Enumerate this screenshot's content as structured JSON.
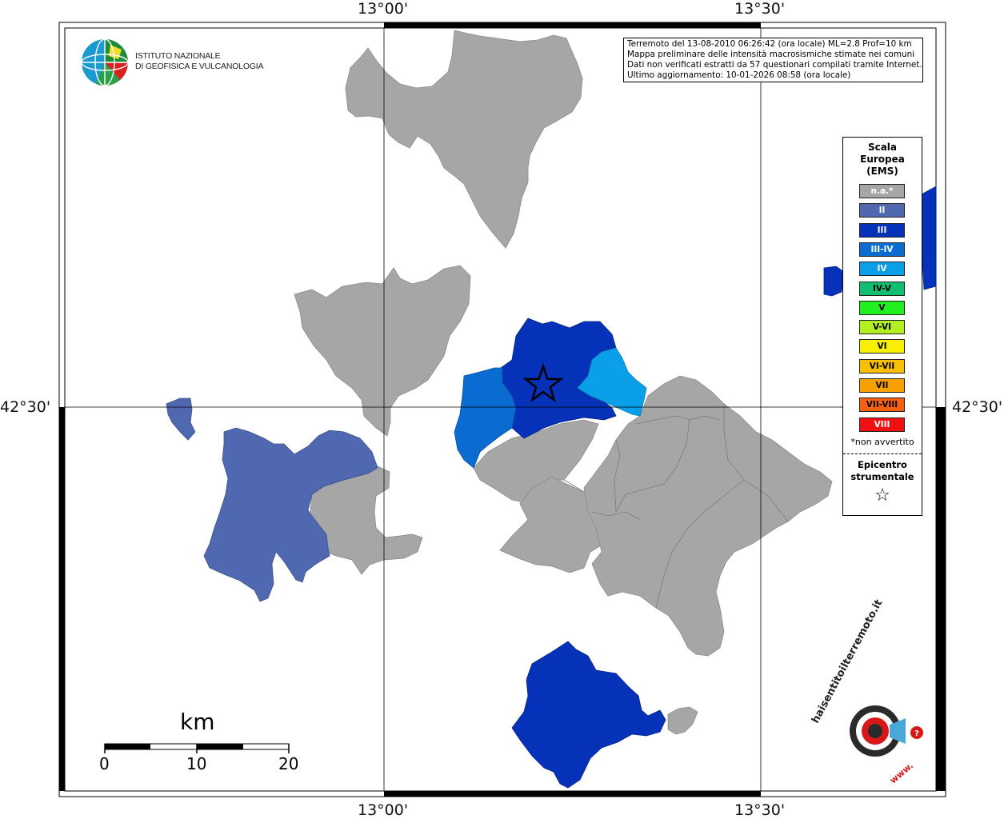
{
  "coordinates": {
    "top_left": "13°00'",
    "top_right": "13°30'",
    "bottom_left": "13°00'",
    "bottom_right": "13°30'",
    "left_lat": "42°30'",
    "right_lat": "42°30'"
  },
  "info": {
    "line1": "Terremoto del 13-08-2010 06:26:42 (ora locale) ML=2.8 Prof=10 km",
    "line2": "Mappa preliminare delle intensità macrosismiche stimate nei comuni",
    "line3": "Dati non verificati estratti da 57 questionari compilati tramite Internet.",
    "line4": "Ultimo aggiornamento: 10-01-2026 08:58 (ora locale)"
  },
  "logo": {
    "name_line1": "ISTITUTO NAZIONALE",
    "name_line2": "DI GEOFISICA E VULCANOLOGIA"
  },
  "legend": {
    "title_line1": "Scala",
    "title_line2": "Europea",
    "title_line3": "(EMS)",
    "items": [
      {
        "label": "n.a.*",
        "color": "#a6a6a6",
        "text_color": "#ffffff"
      },
      {
        "label": "II",
        "color": "#4f68b0",
        "text_color": "#ffffff"
      },
      {
        "label": "III",
        "color": "#0532b8",
        "text_color": "#ffffff"
      },
      {
        "label": "III-IV",
        "color": "#0a6bd0",
        "text_color": "#ffffff"
      },
      {
        "label": "IV",
        "color": "#0a9fe8",
        "text_color": "#ffffff"
      },
      {
        "label": "IV-V",
        "color": "#10c070",
        "text_color": "#000000"
      },
      {
        "label": "V",
        "color": "#20f020",
        "text_color": "#000000"
      },
      {
        "label": "V-VI",
        "color": "#b0f020",
        "text_color": "#000000"
      },
      {
        "label": "VI",
        "color": "#f8f000",
        "text_color": "#000000"
      },
      {
        "label": "VI-VII",
        "color": "#f8c000",
        "text_color": "#000000"
      },
      {
        "label": "VII",
        "color": "#f8a000",
        "text_color": "#000000"
      },
      {
        "label": "VII-VIII",
        "color": "#f86010",
        "text_color": "#000000"
      },
      {
        "label": "VIII",
        "color": "#f01010",
        "text_color": "#ffffff"
      }
    ],
    "note": "*non avvertito",
    "epicenter_line1": "Epicentro",
    "epicenter_line2": "strumentale",
    "star_symbol": "☆"
  },
  "scalebar": {
    "unit": "km",
    "ticks": [
      "0",
      "10",
      "20"
    ]
  },
  "badge": {
    "text_top": "haisentitoilterremoto.it",
    "text_bottom": "www."
  },
  "colors": {
    "gray": "#a6a6a6",
    "int_II": "#4f68b0",
    "int_III": "#0532b8",
    "int_IIIIV": "#0a6bd0",
    "int_IV": "#0a9fe8"
  }
}
